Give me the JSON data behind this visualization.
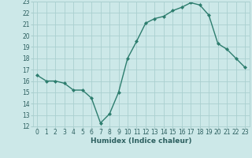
{
  "x": [
    0,
    1,
    2,
    3,
    4,
    5,
    6,
    7,
    8,
    9,
    10,
    11,
    12,
    13,
    14,
    15,
    16,
    17,
    18,
    19,
    20,
    21,
    22,
    23
  ],
  "y": [
    16.5,
    16.0,
    16.0,
    15.8,
    15.2,
    15.2,
    14.5,
    12.3,
    13.1,
    15.0,
    18.0,
    19.5,
    21.1,
    21.5,
    21.7,
    22.2,
    22.5,
    22.9,
    22.7,
    21.8,
    19.3,
    18.8,
    18.0,
    17.2
  ],
  "line_color": "#2d7d6e",
  "marker": "D",
  "marker_size": 2.0,
  "bg_color": "#cce8e8",
  "grid_color": "#aacfcf",
  "xlabel": "Humidex (Indice chaleur)",
  "ylim": [
    12,
    23
  ],
  "xlim": [
    -0.5,
    23.5
  ],
  "yticks": [
    12,
    13,
    14,
    15,
    16,
    17,
    18,
    19,
    20,
    21,
    22,
    23
  ],
  "xticks": [
    0,
    1,
    2,
    3,
    4,
    5,
    6,
    7,
    8,
    9,
    10,
    11,
    12,
    13,
    14,
    15,
    16,
    17,
    18,
    19,
    20,
    21,
    22,
    23
  ],
  "tick_fontsize": 5.5,
  "xlabel_fontsize": 6.5,
  "line_width": 1.0,
  "tick_color": "#2d6060"
}
